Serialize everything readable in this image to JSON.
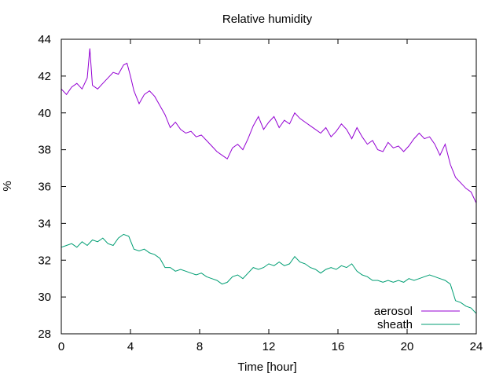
{
  "chart_data": {
    "type": "line",
    "title": "Relative humidity",
    "xlabel": "Time [hour]",
    "ylabel": "%",
    "xlim": [
      0,
      24
    ],
    "ylim": [
      28,
      44
    ],
    "x_ticks": [
      "0",
      "4",
      "8",
      "12",
      "16",
      "20",
      "24"
    ],
    "y_ticks": [
      "28",
      "30",
      "32",
      "34",
      "36",
      "38",
      "40",
      "42",
      "44"
    ],
    "grid": false,
    "legend_position": "bottom-right",
    "series": [
      {
        "name": "aerosol",
        "color": "#9400d3",
        "points": [
          [
            0,
            41.3
          ],
          [
            0.3,
            41.0
          ],
          [
            0.6,
            41.4
          ],
          [
            0.9,
            41.6
          ],
          [
            1.2,
            41.3
          ],
          [
            1.5,
            41.9
          ],
          [
            1.65,
            43.5
          ],
          [
            1.8,
            41.5
          ],
          [
            2.1,
            41.3
          ],
          [
            2.4,
            41.6
          ],
          [
            2.7,
            41.9
          ],
          [
            3.0,
            42.2
          ],
          [
            3.3,
            42.1
          ],
          [
            3.6,
            42.6
          ],
          [
            3.8,
            42.7
          ],
          [
            4.0,
            42.0
          ],
          [
            4.2,
            41.2
          ],
          [
            4.5,
            40.5
          ],
          [
            4.8,
            41.0
          ],
          [
            5.1,
            41.2
          ],
          [
            5.4,
            40.9
          ],
          [
            5.7,
            40.4
          ],
          [
            6.0,
            39.9
          ],
          [
            6.3,
            39.2
          ],
          [
            6.6,
            39.5
          ],
          [
            6.9,
            39.1
          ],
          [
            7.2,
            38.9
          ],
          [
            7.5,
            39.0
          ],
          [
            7.8,
            38.7
          ],
          [
            8.1,
            38.8
          ],
          [
            8.4,
            38.5
          ],
          [
            8.7,
            38.2
          ],
          [
            9.0,
            37.9
          ],
          [
            9.3,
            37.7
          ],
          [
            9.6,
            37.5
          ],
          [
            9.9,
            38.1
          ],
          [
            10.2,
            38.3
          ],
          [
            10.5,
            38.0
          ],
          [
            10.8,
            38.6
          ],
          [
            11.1,
            39.3
          ],
          [
            11.4,
            39.8
          ],
          [
            11.7,
            39.1
          ],
          [
            12.0,
            39.5
          ],
          [
            12.3,
            39.8
          ],
          [
            12.6,
            39.2
          ],
          [
            12.9,
            39.6
          ],
          [
            13.2,
            39.4
          ],
          [
            13.5,
            40.0
          ],
          [
            13.8,
            39.7
          ],
          [
            14.1,
            39.5
          ],
          [
            14.4,
            39.3
          ],
          [
            14.7,
            39.1
          ],
          [
            15.0,
            38.9
          ],
          [
            15.3,
            39.2
          ],
          [
            15.6,
            38.7
          ],
          [
            15.9,
            39.0
          ],
          [
            16.2,
            39.4
          ],
          [
            16.5,
            39.1
          ],
          [
            16.8,
            38.6
          ],
          [
            17.1,
            39.2
          ],
          [
            17.4,
            38.7
          ],
          [
            17.7,
            38.3
          ],
          [
            18.0,
            38.5
          ],
          [
            18.3,
            38.0
          ],
          [
            18.6,
            37.9
          ],
          [
            18.9,
            38.4
          ],
          [
            19.2,
            38.1
          ],
          [
            19.5,
            38.2
          ],
          [
            19.8,
            37.9
          ],
          [
            20.1,
            38.2
          ],
          [
            20.4,
            38.6
          ],
          [
            20.7,
            38.9
          ],
          [
            21.0,
            38.6
          ],
          [
            21.3,
            38.7
          ],
          [
            21.6,
            38.3
          ],
          [
            21.9,
            37.7
          ],
          [
            22.2,
            38.3
          ],
          [
            22.5,
            37.2
          ],
          [
            22.8,
            36.5
          ],
          [
            23.1,
            36.2
          ],
          [
            23.4,
            35.9
          ],
          [
            23.7,
            35.7
          ],
          [
            24.0,
            35.1
          ]
        ]
      },
      {
        "name": "sheath",
        "color": "#009e73",
        "points": [
          [
            0,
            32.7
          ],
          [
            0.3,
            32.8
          ],
          [
            0.6,
            32.9
          ],
          [
            0.9,
            32.7
          ],
          [
            1.2,
            33.0
          ],
          [
            1.5,
            32.8
          ],
          [
            1.8,
            33.1
          ],
          [
            2.1,
            33.0
          ],
          [
            2.4,
            33.2
          ],
          [
            2.7,
            32.9
          ],
          [
            3.0,
            32.8
          ],
          [
            3.3,
            33.2
          ],
          [
            3.6,
            33.4
          ],
          [
            3.9,
            33.3
          ],
          [
            4.2,
            32.6
          ],
          [
            4.5,
            32.5
          ],
          [
            4.8,
            32.6
          ],
          [
            5.1,
            32.4
          ],
          [
            5.4,
            32.3
          ],
          [
            5.7,
            32.1
          ],
          [
            6.0,
            31.6
          ],
          [
            6.3,
            31.6
          ],
          [
            6.6,
            31.4
          ],
          [
            6.9,
            31.5
          ],
          [
            7.2,
            31.4
          ],
          [
            7.5,
            31.3
          ],
          [
            7.8,
            31.2
          ],
          [
            8.1,
            31.3
          ],
          [
            8.4,
            31.1
          ],
          [
            8.7,
            31.0
          ],
          [
            9.0,
            30.9
          ],
          [
            9.3,
            30.7
          ],
          [
            9.6,
            30.8
          ],
          [
            9.9,
            31.1
          ],
          [
            10.2,
            31.2
          ],
          [
            10.5,
            31.0
          ],
          [
            10.8,
            31.3
          ],
          [
            11.1,
            31.6
          ],
          [
            11.4,
            31.5
          ],
          [
            11.7,
            31.6
          ],
          [
            12.0,
            31.8
          ],
          [
            12.3,
            31.7
          ],
          [
            12.6,
            31.9
          ],
          [
            12.9,
            31.7
          ],
          [
            13.2,
            31.8
          ],
          [
            13.5,
            32.2
          ],
          [
            13.8,
            31.9
          ],
          [
            14.1,
            31.8
          ],
          [
            14.4,
            31.6
          ],
          [
            14.7,
            31.5
          ],
          [
            15.0,
            31.3
          ],
          [
            15.3,
            31.5
          ],
          [
            15.6,
            31.6
          ],
          [
            15.9,
            31.5
          ],
          [
            16.2,
            31.7
          ],
          [
            16.5,
            31.6
          ],
          [
            16.8,
            31.8
          ],
          [
            17.1,
            31.4
          ],
          [
            17.4,
            31.2
          ],
          [
            17.7,
            31.1
          ],
          [
            18.0,
            30.9
          ],
          [
            18.3,
            30.9
          ],
          [
            18.6,
            30.8
          ],
          [
            18.9,
            30.9
          ],
          [
            19.2,
            30.8
          ],
          [
            19.5,
            30.9
          ],
          [
            19.8,
            30.8
          ],
          [
            20.1,
            31.0
          ],
          [
            20.4,
            30.9
          ],
          [
            20.7,
            31.0
          ],
          [
            21.0,
            31.1
          ],
          [
            21.3,
            31.2
          ],
          [
            21.6,
            31.1
          ],
          [
            21.9,
            31.0
          ],
          [
            22.2,
            30.9
          ],
          [
            22.5,
            30.7
          ],
          [
            22.8,
            29.8
          ],
          [
            23.1,
            29.7
          ],
          [
            23.4,
            29.5
          ],
          [
            23.7,
            29.4
          ],
          [
            24.0,
            29.1
          ]
        ]
      }
    ]
  }
}
